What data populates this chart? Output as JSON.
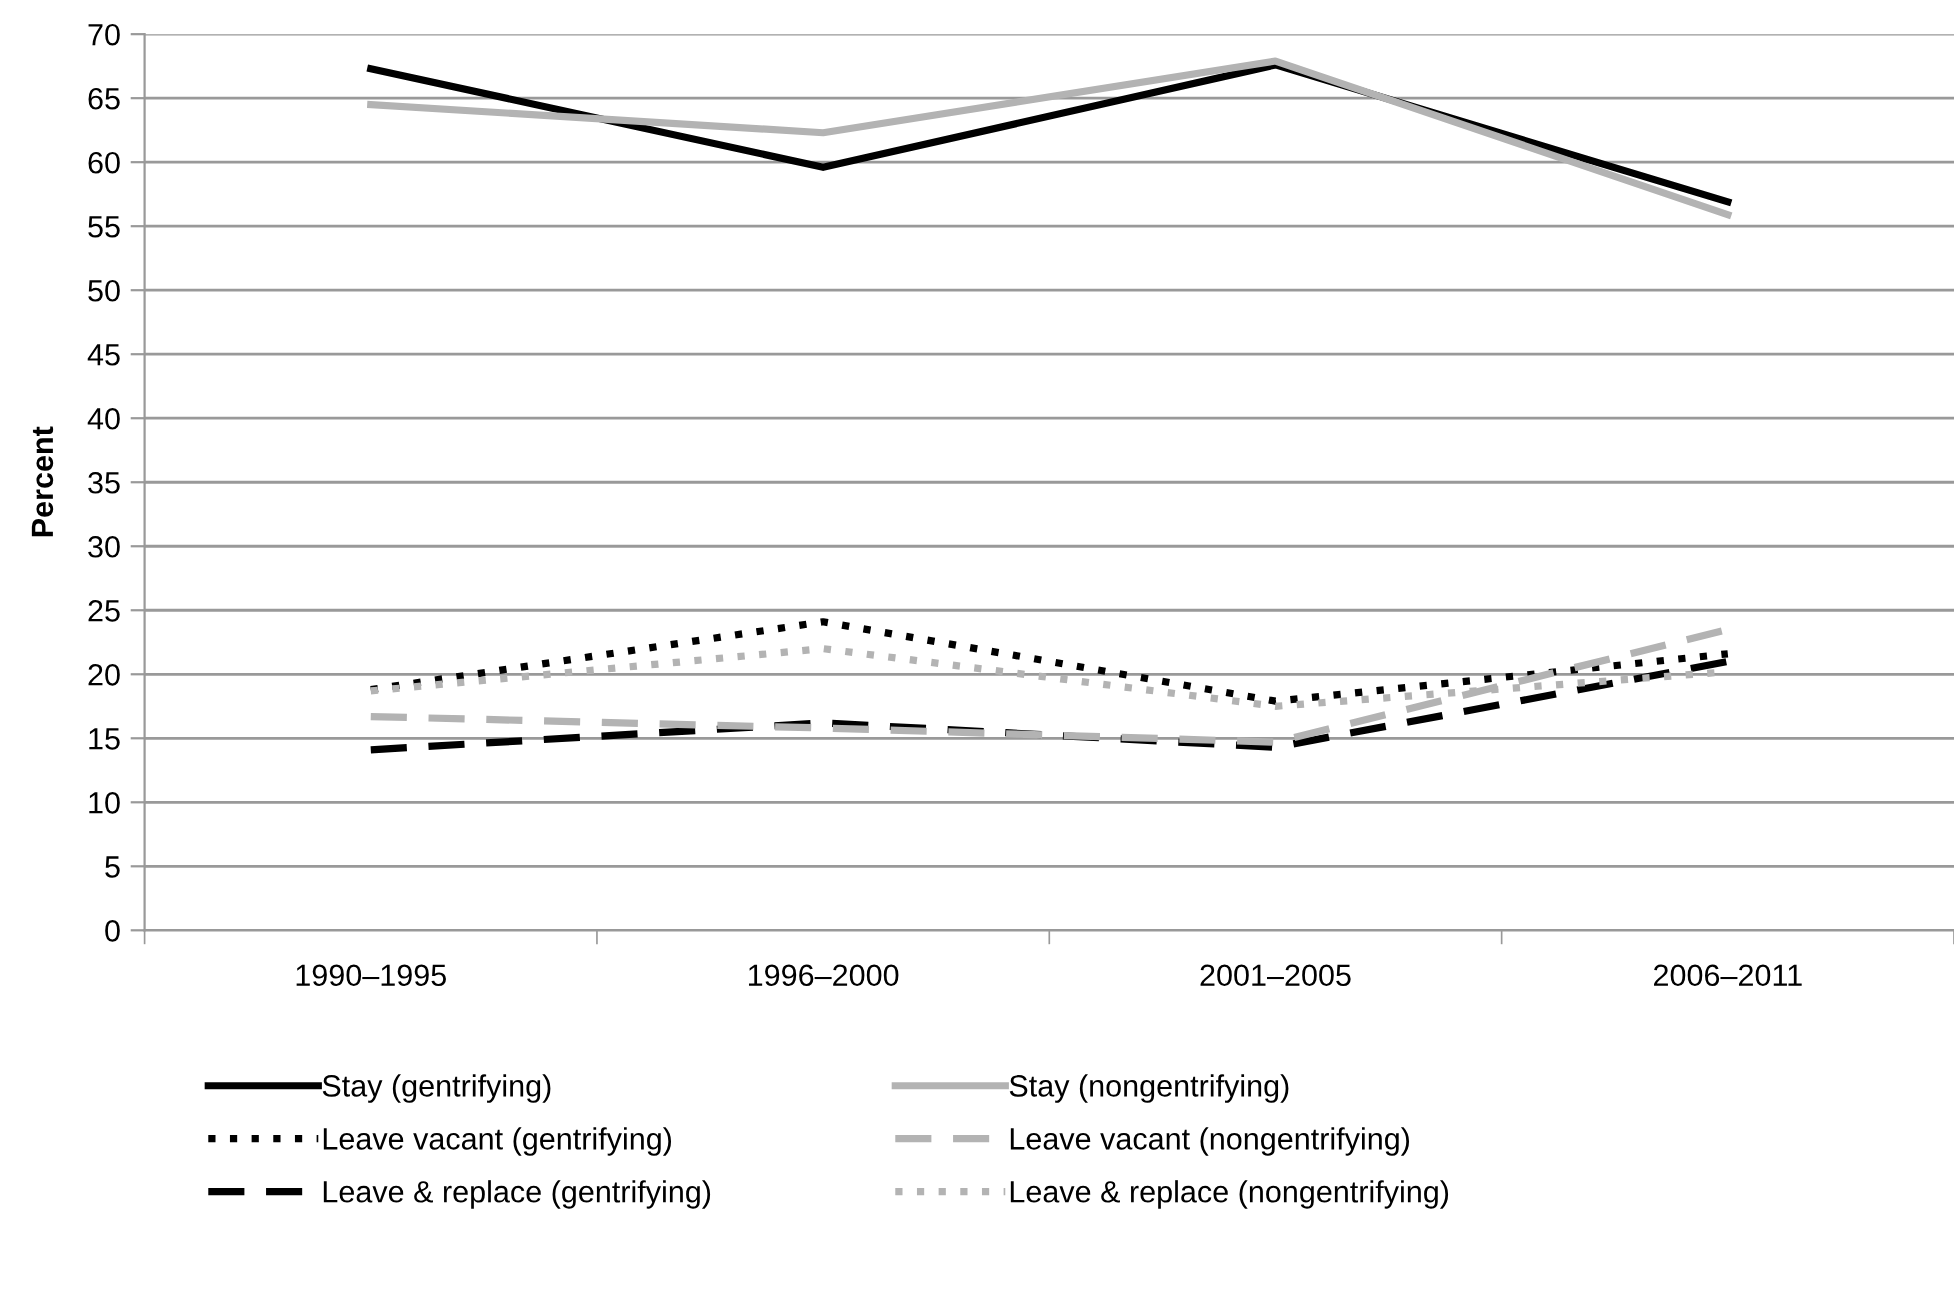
{
  "chart_data": {
    "type": "line",
    "ylabel": "Percent",
    "categories": [
      "1990–1995",
      "1996–2000",
      "2001–2005",
      "2006–2011"
    ],
    "ylim": [
      0,
      70
    ],
    "yticks": [
      0,
      5,
      10,
      15,
      20,
      25,
      30,
      35,
      40,
      45,
      50,
      55,
      60,
      65,
      70
    ],
    "grid": "y",
    "legend": "bottom",
    "marker": "none",
    "series": [
      {
        "name": "Stay (gentrifying)",
        "color": "#000000",
        "line_style": "solid",
        "values": [
          67.3,
          59.6,
          67.6,
          56.9
        ]
      },
      {
        "name": "Leave vacant (gentrifying)",
        "color": "#000000",
        "line_style": "dotted",
        "values": [
          18.8,
          24.1,
          17.9,
          21.6
        ]
      },
      {
        "name": "Leave & replace (gentrifying)",
        "color": "#000000",
        "line_style": "dashed",
        "values": [
          14.1,
          16.2,
          14.3,
          21.0
        ]
      },
      {
        "name": "Stay (nongentrifying)",
        "color": "#b3b3b3",
        "line_style": "solid",
        "values": [
          64.5,
          62.3,
          67.9,
          55.9
        ]
      },
      {
        "name": "Leave vacant (nongentrifying)",
        "color": "#b3b3b3",
        "line_style": "dashed",
        "values": [
          16.7,
          15.8,
          14.7,
          23.5
        ]
      },
      {
        "name": "Leave & replace (nongentrifying)",
        "color": "#b3b3b3",
        "line_style": "dotted",
        "values": [
          18.7,
          22.0,
          17.5,
          20.2
        ]
      }
    ]
  }
}
